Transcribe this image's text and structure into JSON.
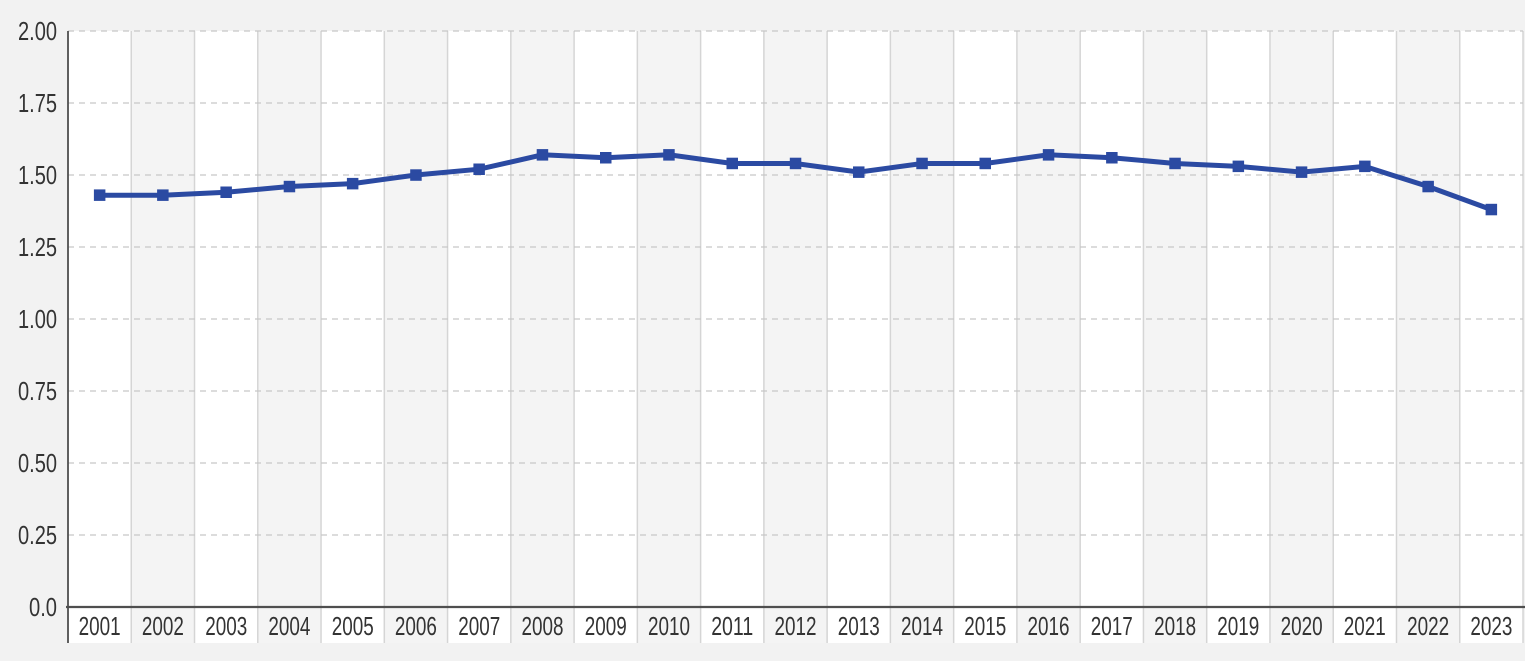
{
  "style": {
    "page_background": "#f2f2f2",
    "band_white": "#ffffff",
    "band_gray": "#f4f4f4",
    "vertical_gridline_color": "#d5d5d5",
    "horizontal_gridline_color": "#c7c7c7",
    "axis_color": "#4f4f4f",
    "tick_label_color": "#333333",
    "accent_line_color": "#2b4aa2"
  },
  "chart_data": {
    "type": "line",
    "title": "",
    "xlabel": "",
    "ylabel": "",
    "legend_position": "none",
    "grid": "horizontal-dashed",
    "marker": "square",
    "ylim": [
      0.0,
      2.0
    ],
    "categories": [
      "2001",
      "2002",
      "2003",
      "2004",
      "2005",
      "2006",
      "2007",
      "2008",
      "2009",
      "2010",
      "2011",
      "2012",
      "2013",
      "2014",
      "2015",
      "2016",
      "2017",
      "2018",
      "2019",
      "2020",
      "2021",
      "2022",
      "2023"
    ],
    "series": [
      {
        "name": "series-1",
        "color": "#2b4aa2",
        "values": [
          1.43,
          1.43,
          1.44,
          1.46,
          1.47,
          1.5,
          1.52,
          1.57,
          1.56,
          1.57,
          1.54,
          1.54,
          1.51,
          1.54,
          1.54,
          1.57,
          1.56,
          1.54,
          1.53,
          1.51,
          1.53,
          1.46,
          1.38
        ]
      }
    ],
    "yticks": [
      {
        "label": "2.00",
        "value": 2.0
      },
      {
        "label": "1.75",
        "value": 1.75
      },
      {
        "label": "1.50",
        "value": 1.5
      },
      {
        "label": "1.25",
        "value": 1.25
      },
      {
        "label": "1.00",
        "value": 1.0
      },
      {
        "label": "0.75",
        "value": 0.75
      },
      {
        "label": "0.50",
        "value": 0.5
      },
      {
        "label": "0.25",
        "value": 0.25
      },
      {
        "label": "0.0",
        "value": 0.0
      }
    ]
  }
}
